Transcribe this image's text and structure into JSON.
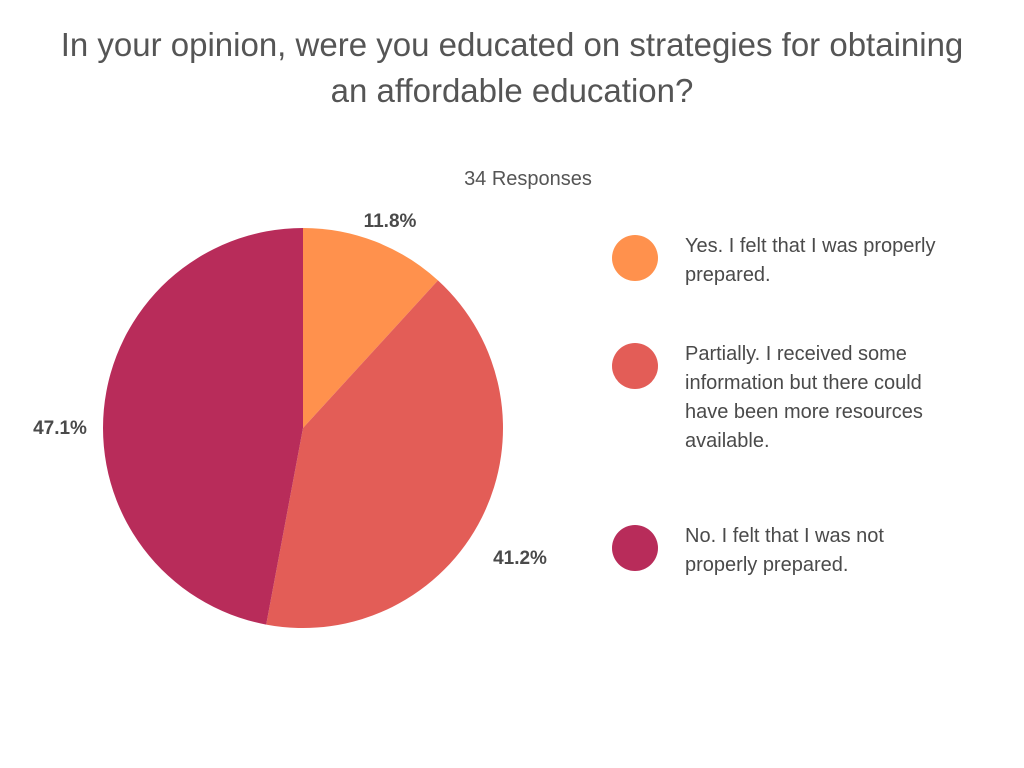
{
  "chart_data": {
    "type": "pie",
    "title": "In your opinion, were you educated on strategies for obtaining an affordable education?",
    "subtitle": "34 Responses",
    "categories": [
      "Yes. I felt that I was properly prepared.",
      "Partially. I received some information but there could have been more resources available.",
      "No. I felt that I was not properly prepared."
    ],
    "values": [
      11.8,
      41.2,
      47.1
    ],
    "labels": [
      "11.8%",
      "41.2%",
      "47.1%"
    ],
    "colors": [
      "#ff914d",
      "#e35d57",
      "#b82c5a"
    ],
    "legend_position": "right"
  }
}
